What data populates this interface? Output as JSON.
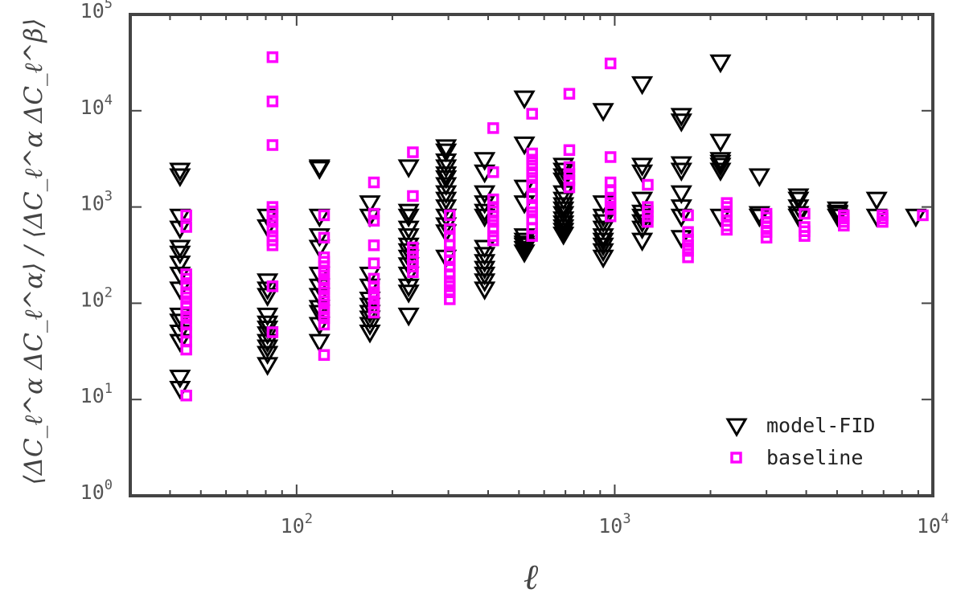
{
  "chart_data": {
    "type": "scatter",
    "title": "",
    "xlabel": "ℓ",
    "ylabel": "⟨ΔC_ℓ^α ΔC_ℓ^α⟩ / ⟨ΔC_ℓ^α ΔC_ℓ^β⟩",
    "xscale": "log",
    "yscale": "log",
    "xlim": [
      30,
      10000
    ],
    "ylim": [
      1,
      100000
    ],
    "x_ticks": [
      {
        "value": 100,
        "base": "10",
        "exp": "2"
      },
      {
        "value": 1000,
        "base": "10",
        "exp": "3"
      },
      {
        "value": 10000,
        "base": "10",
        "exp": "4"
      }
    ],
    "y_ticks": [
      {
        "value": 1,
        "base": "10",
        "exp": "0"
      },
      {
        "value": 10,
        "base": "10",
        "exp": "1"
      },
      {
        "value": 100,
        "base": "10",
        "exp": "2"
      },
      {
        "value": 1000,
        "base": "10",
        "exp": "3"
      },
      {
        "value": 10000,
        "base": "10",
        "exp": "4"
      },
      {
        "value": 100000,
        "base": "10",
        "exp": "5"
      }
    ],
    "grid": false,
    "legend_position": "bottom-right",
    "series": [
      {
        "name": "model-FID",
        "marker": "triangle-down",
        "color": "#000000",
        "points": [
          [
            43,
            2400
          ],
          [
            43,
            2100
          ],
          [
            43,
            800
          ],
          [
            43,
            600
          ],
          [
            43,
            380
          ],
          [
            43,
            330
          ],
          [
            43,
            260
          ],
          [
            43,
            200
          ],
          [
            43,
            140
          ],
          [
            43,
            75
          ],
          [
            43,
            65
          ],
          [
            43,
            50
          ],
          [
            43,
            40
          ],
          [
            43,
            17
          ],
          [
            43,
            13
          ],
          [
            81,
            800
          ],
          [
            81,
            620
          ],
          [
            81,
            170
          ],
          [
            81,
            140
          ],
          [
            81,
            120
          ],
          [
            81,
            75
          ],
          [
            81,
            62
          ],
          [
            81,
            55
          ],
          [
            81,
            48
          ],
          [
            81,
            40
          ],
          [
            81,
            35
          ],
          [
            81,
            30
          ],
          [
            81,
            23
          ],
          [
            118,
            2600
          ],
          [
            118,
            2500
          ],
          [
            118,
            800
          ],
          [
            118,
            500
          ],
          [
            118,
            380
          ],
          [
            118,
            200
          ],
          [
            118,
            150
          ],
          [
            118,
            120
          ],
          [
            118,
            90
          ],
          [
            118,
            80
          ],
          [
            118,
            60
          ],
          [
            118,
            40
          ],
          [
            170,
            1100
          ],
          [
            170,
            800
          ],
          [
            170,
            200
          ],
          [
            170,
            150
          ],
          [
            170,
            110
          ],
          [
            170,
            95
          ],
          [
            170,
            80
          ],
          [
            170,
            70
          ],
          [
            170,
            60
          ],
          [
            170,
            50
          ],
          [
            225,
            2600
          ],
          [
            225,
            900
          ],
          [
            225,
            800
          ],
          [
            225,
            600
          ],
          [
            225,
            500
          ],
          [
            225,
            400
          ],
          [
            225,
            350
          ],
          [
            225,
            300
          ],
          [
            225,
            250
          ],
          [
            225,
            200
          ],
          [
            225,
            150
          ],
          [
            225,
            130
          ],
          [
            225,
            75
          ],
          [
            295,
            4200
          ],
          [
            295,
            3800
          ],
          [
            295,
            3000
          ],
          [
            295,
            2600
          ],
          [
            295,
            2200
          ],
          [
            295,
            2000
          ],
          [
            295,
            1700
          ],
          [
            295,
            1400
          ],
          [
            295,
            1200
          ],
          [
            295,
            1000
          ],
          [
            295,
            800
          ],
          [
            295,
            650
          ],
          [
            295,
            550
          ],
          [
            295,
            300
          ],
          [
            390,
            3100
          ],
          [
            390,
            2300
          ],
          [
            390,
            1400
          ],
          [
            390,
            1100
          ],
          [
            390,
            900
          ],
          [
            390,
            800
          ],
          [
            390,
            380
          ],
          [
            390,
            320
          ],
          [
            390,
            270
          ],
          [
            390,
            230
          ],
          [
            390,
            200
          ],
          [
            390,
            170
          ],
          [
            390,
            140
          ],
          [
            520,
            13500
          ],
          [
            520,
            4500
          ],
          [
            520,
            1600
          ],
          [
            520,
            1100
          ],
          [
            520,
            500
          ],
          [
            520,
            450
          ],
          [
            520,
            420
          ],
          [
            520,
            400
          ],
          [
            520,
            370
          ],
          [
            520,
            340
          ],
          [
            690,
            2700
          ],
          [
            690,
            2400
          ],
          [
            690,
            2100
          ],
          [
            690,
            1900
          ],
          [
            690,
            1400
          ],
          [
            690,
            1200
          ],
          [
            690,
            1050
          ],
          [
            690,
            950
          ],
          [
            690,
            850
          ],
          [
            690,
            750
          ],
          [
            690,
            680
          ],
          [
            690,
            620
          ],
          [
            690,
            570
          ],
          [
            690,
            520
          ],
          [
            920,
            10000
          ],
          [
            920,
            1100
          ],
          [
            920,
            800
          ],
          [
            920,
            700
          ],
          [
            920,
            600
          ],
          [
            920,
            500
          ],
          [
            920,
            450
          ],
          [
            920,
            400
          ],
          [
            920,
            350
          ],
          [
            920,
            300
          ],
          [
            1220,
            19000
          ],
          [
            1220,
            2700
          ],
          [
            1220,
            2300
          ],
          [
            1220,
            1200
          ],
          [
            1220,
            880
          ],
          [
            1220,
            800
          ],
          [
            1220,
            700
          ],
          [
            1220,
            600
          ],
          [
            1220,
            450
          ],
          [
            1620,
            8900
          ],
          [
            1620,
            7800
          ],
          [
            1620,
            2800
          ],
          [
            1620,
            2400
          ],
          [
            1620,
            1400
          ],
          [
            1620,
            1000
          ],
          [
            1620,
            800
          ],
          [
            1620,
            480
          ],
          [
            2150,
            32000
          ],
          [
            2150,
            4800
          ],
          [
            2150,
            3100
          ],
          [
            2150,
            2900
          ],
          [
            2150,
            2700
          ],
          [
            2150,
            2400
          ],
          [
            2150,
            800
          ],
          [
            2850,
            2100
          ],
          [
            2850,
            850
          ],
          [
            2850,
            800
          ],
          [
            3780,
            1300
          ],
          [
            3780,
            1200
          ],
          [
            3780,
            1000
          ],
          [
            3780,
            850
          ],
          [
            3780,
            800
          ],
          [
            5020,
            950
          ],
          [
            5020,
            880
          ],
          [
            5020,
            850
          ],
          [
            5020,
            800
          ],
          [
            6660,
            1200
          ],
          [
            6660,
            800
          ],
          [
            8840,
            800
          ]
        ]
      },
      {
        "name": "baseline",
        "marker": "square",
        "color": "#ff00ff",
        "points": [
          [
            45,
            820
          ],
          [
            45,
            620
          ],
          [
            45,
            200
          ],
          [
            45,
            180
          ],
          [
            45,
            155
          ],
          [
            45,
            130
          ],
          [
            45,
            115
          ],
          [
            45,
            100
          ],
          [
            45,
            90
          ],
          [
            45,
            80
          ],
          [
            45,
            70
          ],
          [
            45,
            60
          ],
          [
            45,
            50
          ],
          [
            45,
            40
          ],
          [
            45,
            33
          ],
          [
            45,
            11
          ],
          [
            84,
            36000
          ],
          [
            84,
            12500
          ],
          [
            84,
            4400
          ],
          [
            84,
            1000
          ],
          [
            84,
            900
          ],
          [
            84,
            800
          ],
          [
            84,
            700
          ],
          [
            84,
            600
          ],
          [
            84,
            500
          ],
          [
            84,
            450
          ],
          [
            84,
            400
          ],
          [
            84,
            150
          ],
          [
            84,
            50
          ],
          [
            122,
            820
          ],
          [
            122,
            480
          ],
          [
            122,
            300
          ],
          [
            122,
            270
          ],
          [
            122,
            240
          ],
          [
            122,
            210
          ],
          [
            122,
            180
          ],
          [
            122,
            160
          ],
          [
            122,
            140
          ],
          [
            122,
            120
          ],
          [
            122,
            105
          ],
          [
            122,
            90
          ],
          [
            122,
            80
          ],
          [
            122,
            70
          ],
          [
            122,
            60
          ],
          [
            122,
            29
          ],
          [
            175,
            1800
          ],
          [
            175,
            850
          ],
          [
            175,
            720
          ],
          [
            175,
            400
          ],
          [
            175,
            260
          ],
          [
            175,
            180
          ],
          [
            175,
            150
          ],
          [
            175,
            130
          ],
          [
            175,
            115
          ],
          [
            175,
            100
          ],
          [
            175,
            90
          ],
          [
            175,
            80
          ],
          [
            232,
            3700
          ],
          [
            232,
            1300
          ],
          [
            232,
            380
          ],
          [
            232,
            340
          ],
          [
            232,
            300
          ],
          [
            232,
            270
          ],
          [
            232,
            240
          ],
          [
            232,
            210
          ],
          [
            303,
            820
          ],
          [
            303,
            590
          ],
          [
            303,
            500
          ],
          [
            303,
            400
          ],
          [
            303,
            340
          ],
          [
            303,
            280
          ],
          [
            303,
            240
          ],
          [
            303,
            200
          ],
          [
            303,
            170
          ],
          [
            303,
            150
          ],
          [
            303,
            130
          ],
          [
            303,
            110
          ],
          [
            415,
            6600
          ],
          [
            415,
            2300
          ],
          [
            415,
            1200
          ],
          [
            415,
            1000
          ],
          [
            415,
            900
          ],
          [
            415,
            800
          ],
          [
            415,
            700
          ],
          [
            415,
            600
          ],
          [
            415,
            500
          ],
          [
            415,
            450
          ],
          [
            550,
            9300
          ],
          [
            550,
            3600
          ],
          [
            550,
            3100
          ],
          [
            550,
            2700
          ],
          [
            550,
            2300
          ],
          [
            550,
            2000
          ],
          [
            550,
            1700
          ],
          [
            550,
            1300
          ],
          [
            550,
            1000
          ],
          [
            550,
            880
          ],
          [
            550,
            750
          ],
          [
            550,
            600
          ],
          [
            550,
            500
          ],
          [
            720,
            15000
          ],
          [
            720,
            3900
          ],
          [
            720,
            2600
          ],
          [
            720,
            2200
          ],
          [
            720,
            1900
          ],
          [
            720,
            1600
          ],
          [
            970,
            31000
          ],
          [
            970,
            3300
          ],
          [
            970,
            1800
          ],
          [
            970,
            1500
          ],
          [
            970,
            1250
          ],
          [
            970,
            1100
          ],
          [
            970,
            950
          ],
          [
            970,
            800
          ],
          [
            1270,
            1700
          ],
          [
            1270,
            1000
          ],
          [
            1270,
            900
          ],
          [
            1270,
            800
          ],
          [
            1270,
            700
          ],
          [
            1700,
            820
          ],
          [
            1700,
            550
          ],
          [
            1700,
            460
          ],
          [
            1700,
            400
          ],
          [
            1700,
            350
          ],
          [
            1700,
            300
          ],
          [
            2250,
            1100
          ],
          [
            2250,
            1000
          ],
          [
            2250,
            900
          ],
          [
            2250,
            820
          ],
          [
            2250,
            720
          ],
          [
            2250,
            640
          ],
          [
            2250,
            580
          ],
          [
            3000,
            850
          ],
          [
            3000,
            780
          ],
          [
            3000,
            700
          ],
          [
            3000,
            620
          ],
          [
            3000,
            550
          ],
          [
            3000,
            480
          ],
          [
            3950,
            850
          ],
          [
            3950,
            620
          ],
          [
            3950,
            560
          ],
          [
            3950,
            500
          ],
          [
            5250,
            820
          ],
          [
            5250,
            760
          ],
          [
            5250,
            700
          ],
          [
            5250,
            640
          ],
          [
            6950,
            820
          ],
          [
            6950,
            760
          ],
          [
            6950,
            700
          ],
          [
            9300,
            820
          ]
        ]
      }
    ]
  }
}
